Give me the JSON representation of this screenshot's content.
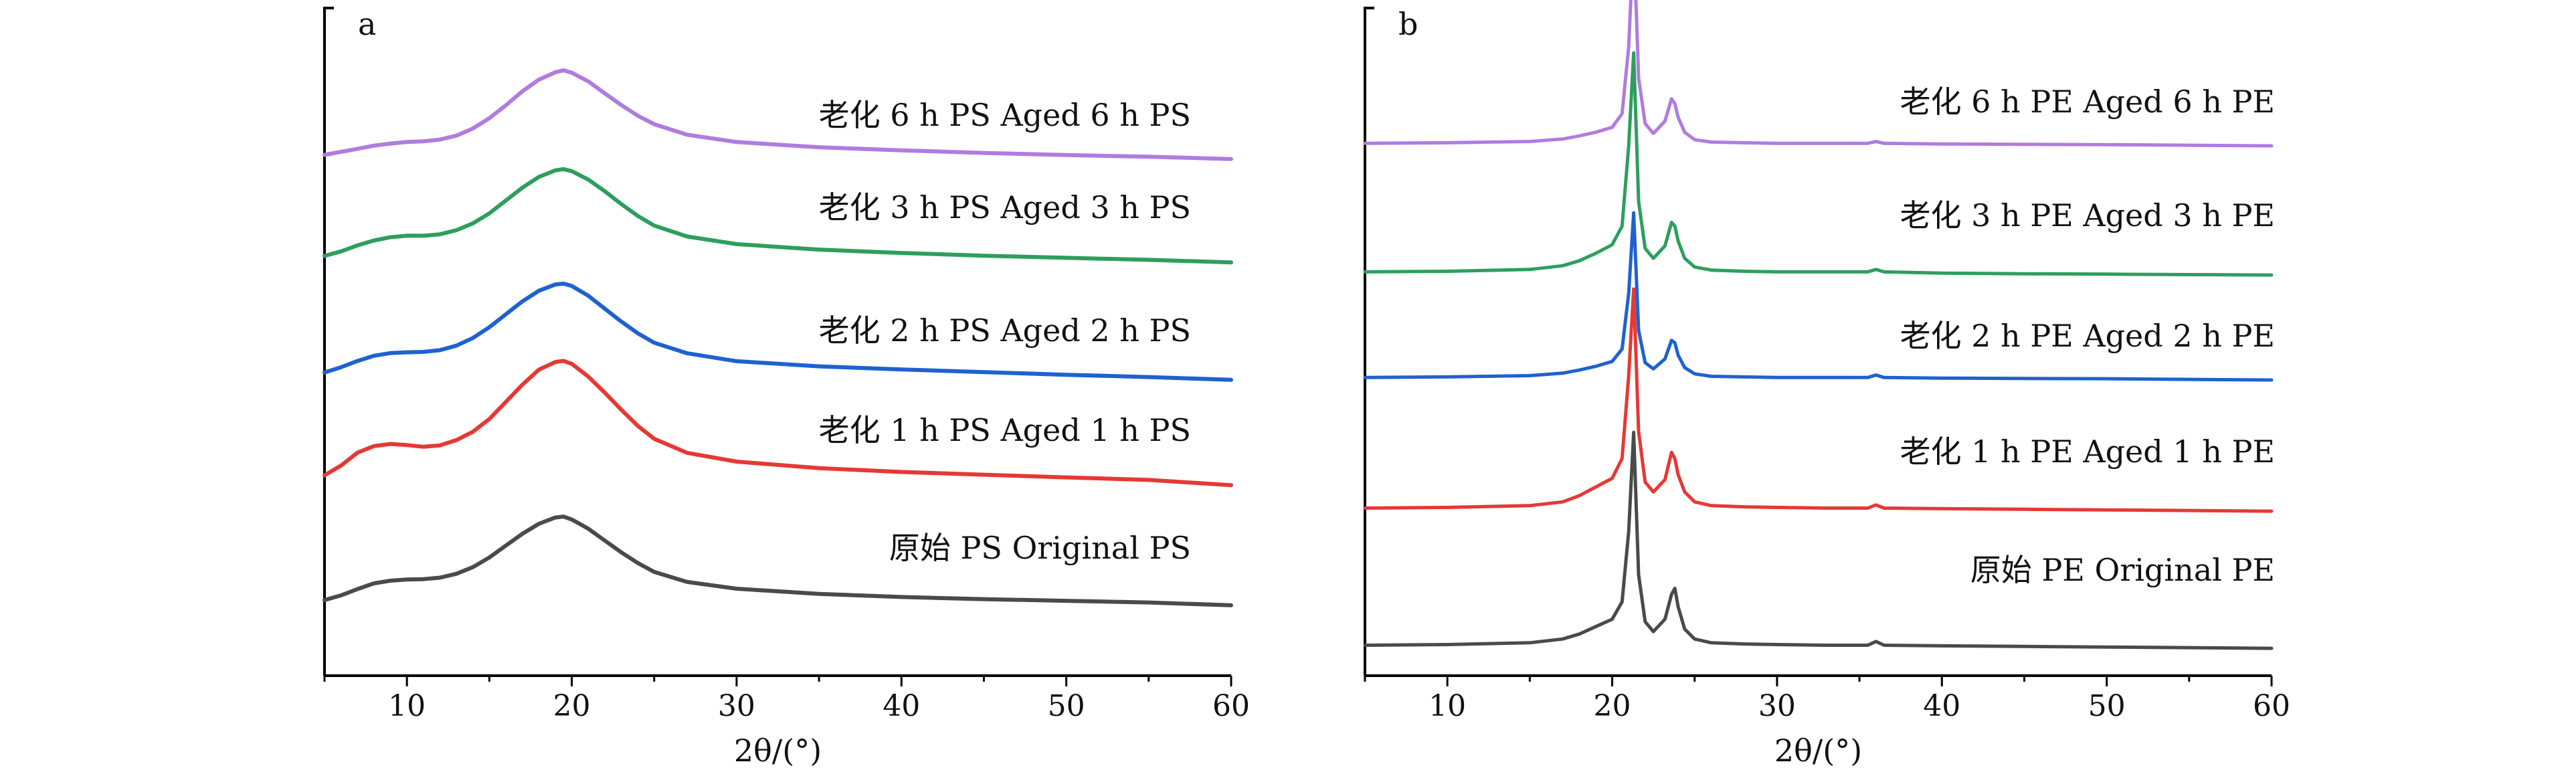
{
  "chart_data": [
    {
      "panel_label": "a",
      "type": "line",
      "xlabel": "2θ/(°)",
      "xlim": [
        5,
        60
      ],
      "xticks": [
        10,
        20,
        30,
        40,
        50,
        60
      ],
      "yticks_shown": false,
      "grid": false,
      "x": [
        5,
        6,
        7,
        8,
        9,
        10,
        11,
        12,
        13,
        14,
        15,
        16,
        17,
        18,
        19,
        19.5,
        20,
        21,
        22,
        23,
        24,
        25,
        27,
        30,
        35,
        40,
        45,
        50,
        55,
        60
      ],
      "series": [
        {
          "name": "原始 PS  Original PS",
          "color": "#4a4a4a",
          "values": [
            0.5,
            0.95,
            1.55,
            2.1,
            2.35,
            2.45,
            2.48,
            2.6,
            2.95,
            3.55,
            4.45,
            5.55,
            6.65,
            7.6,
            8.2,
            8.3,
            8.05,
            7.2,
            6.1,
            5.0,
            4.0,
            3.15,
            2.2,
            1.55,
            1.05,
            0.75,
            0.55,
            0.4,
            0.25,
            0.0
          ]
        },
        {
          "name": "老化 1 h PS Aged 1 h PS",
          "color": "#e53935",
          "values": [
            0.9,
            1.8,
            3.0,
            3.6,
            3.8,
            3.7,
            3.55,
            3.7,
            4.2,
            5.0,
            6.2,
            7.8,
            9.4,
            10.8,
            11.5,
            11.6,
            11.3,
            10.1,
            8.6,
            7.0,
            5.5,
            4.3,
            3.0,
            2.2,
            1.6,
            1.25,
            1.0,
            0.75,
            0.5,
            0.0
          ]
        },
        {
          "name": "老化 2 h PS Aged 2 h PS",
          "color": "#1e62d0",
          "values": [
            0.7,
            1.2,
            1.8,
            2.3,
            2.55,
            2.62,
            2.65,
            2.8,
            3.2,
            3.9,
            4.9,
            6.1,
            7.3,
            8.3,
            8.9,
            9.0,
            8.8,
            7.9,
            6.7,
            5.5,
            4.4,
            3.5,
            2.5,
            1.75,
            1.25,
            0.95,
            0.7,
            0.45,
            0.25,
            0.0
          ]
        },
        {
          "name": "老化 3 h PS Aged 3 h PS",
          "color": "#2e9e5e",
          "values": [
            0.6,
            1.0,
            1.55,
            2.0,
            2.3,
            2.45,
            2.45,
            2.6,
            3.0,
            3.65,
            4.6,
            5.8,
            7.0,
            8.0,
            8.6,
            8.7,
            8.5,
            7.7,
            6.6,
            5.4,
            4.3,
            3.4,
            2.4,
            1.7,
            1.2,
            0.9,
            0.65,
            0.45,
            0.25,
            0.0
          ]
        },
        {
          "name": "老化 6 h PS Aged 6 h PS",
          "color": "#b07ce0",
          "values": [
            0.4,
            0.7,
            1.0,
            1.3,
            1.5,
            1.65,
            1.7,
            1.85,
            2.2,
            2.85,
            3.8,
            5.0,
            6.3,
            7.4,
            8.1,
            8.3,
            8.1,
            7.3,
            6.2,
            5.1,
            4.1,
            3.3,
            2.3,
            1.6,
            1.1,
            0.8,
            0.55,
            0.35,
            0.2,
            0.0
          ]
        }
      ]
    },
    {
      "panel_label": "b",
      "type": "line",
      "xlabel": "2θ/(°)",
      "xlim": [
        5,
        60
      ],
      "xticks": [
        10,
        20,
        30,
        40,
        50,
        60
      ],
      "yticks_shown": false,
      "grid": false,
      "x": [
        5,
        10,
        15,
        17,
        18,
        19,
        20,
        20.6,
        21.0,
        21.3,
        21.6,
        22.0,
        22.5,
        23.2,
        23.6,
        23.8,
        24.0,
        24.4,
        25.0,
        26,
        28,
        30,
        33,
        35.5,
        36,
        36.5,
        40,
        45,
        50,
        55,
        60
      ],
      "series": [
        {
          "name": "原始 PE  Original PE",
          "color": "#4a4a4a",
          "values": [
            0.3,
            0.35,
            0.5,
            0.8,
            1.2,
            1.8,
            2.4,
            3.8,
            9.5,
            17.5,
            6.0,
            2.2,
            1.4,
            2.4,
            4.4,
            4.9,
            3.4,
            1.6,
            0.8,
            0.5,
            0.4,
            0.35,
            0.3,
            0.3,
            0.6,
            0.3,
            0.25,
            0.2,
            0.15,
            0.1,
            0.05
          ]
        },
        {
          "name": "老化 1 h PE Aged 1 h PE",
          "color": "#e53935",
          "values": [
            0.3,
            0.35,
            0.5,
            0.8,
            1.3,
            2.0,
            2.7,
            4.3,
            11.0,
            18.0,
            6.5,
            2.4,
            1.6,
            2.6,
            4.8,
            4.3,
            3.0,
            1.6,
            0.8,
            0.5,
            0.4,
            0.35,
            0.3,
            0.3,
            0.55,
            0.3,
            0.25,
            0.2,
            0.15,
            0.1,
            0.05
          ]
        },
        {
          "name": "老化 2 h PE Aged 2 h PE",
          "color": "#1e62d0",
          "values": [
            0.2,
            0.25,
            0.35,
            0.55,
            0.8,
            1.1,
            1.5,
            2.5,
            7.0,
            13.5,
            4.0,
            1.4,
            0.9,
            1.7,
            3.2,
            3.0,
            2.0,
            1.0,
            0.5,
            0.3,
            0.25,
            0.2,
            0.2,
            0.2,
            0.4,
            0.2,
            0.15,
            0.12,
            0.1,
            0.05,
            0.0
          ]
        },
        {
          "name": "老化 3 h PE Aged 3 h PE",
          "color": "#2e9e5e",
          "values": [
            0.3,
            0.35,
            0.5,
            0.8,
            1.2,
            1.8,
            2.5,
            4.0,
            10.5,
            18.0,
            6.0,
            2.2,
            1.4,
            2.4,
            4.3,
            4.0,
            2.8,
            1.4,
            0.7,
            0.45,
            0.35,
            0.3,
            0.3,
            0.3,
            0.5,
            0.3,
            0.2,
            0.15,
            0.12,
            0.08,
            0.05
          ]
        },
        {
          "name": "老化 6 h PE Aged 6 h PE",
          "color": "#b07ce0",
          "values": [
            0.2,
            0.25,
            0.35,
            0.55,
            0.8,
            1.1,
            1.5,
            2.6,
            8.0,
            17.0,
            5.5,
            1.8,
            1.0,
            2.0,
            3.8,
            3.4,
            2.3,
            1.1,
            0.5,
            0.3,
            0.25,
            0.2,
            0.2,
            0.2,
            0.35,
            0.2,
            0.15,
            0.12,
            0.1,
            0.05,
            0.0
          ]
        }
      ]
    }
  ]
}
